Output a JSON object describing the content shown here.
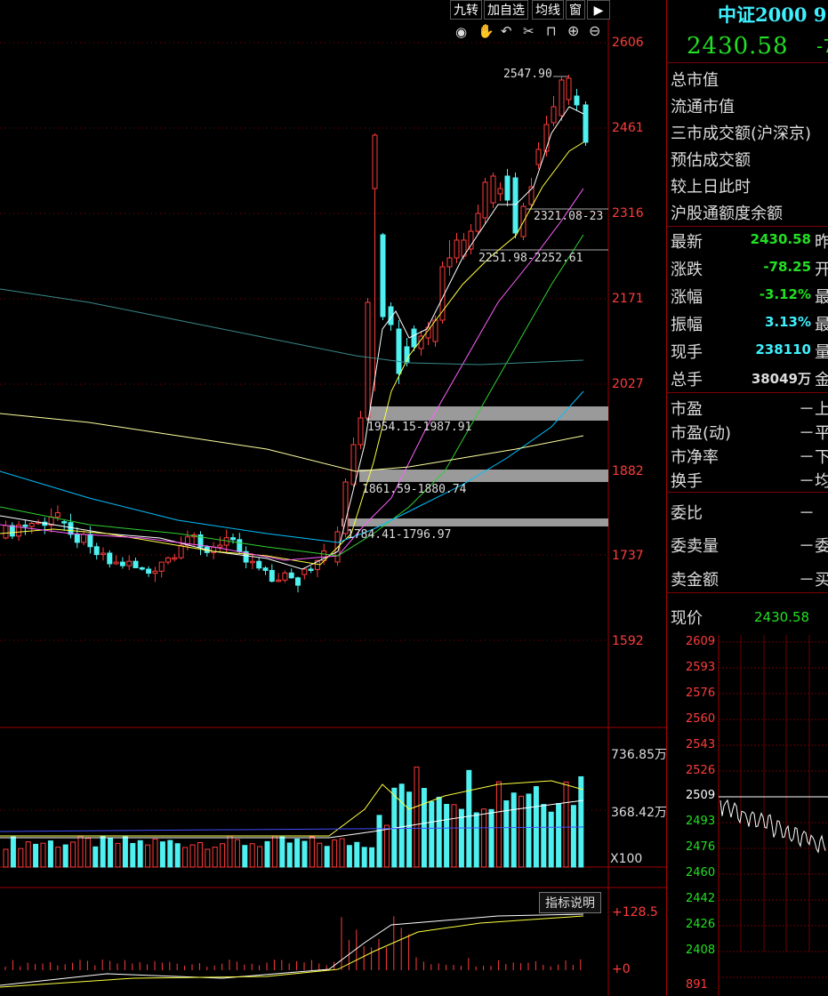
{
  "toolbar": {
    "nine_turn": "九转",
    "add_watch": "加自选",
    "ma_line": "均线",
    "window": "窗",
    "arrow": "▶"
  },
  "chart_icons": [
    "eye-icon",
    "hand-icon",
    "undo-icon",
    "scissors-icon",
    "lock-icon",
    "zoom-in-icon",
    "zoom-out-icon"
  ],
  "price_axis": [
    "2606",
    "2461",
    "2316",
    "2171",
    "2027",
    "1882",
    "1737",
    "1592"
  ],
  "volume_axis": {
    "top": "736.85万",
    "mid": "368.42万",
    "unit": "X100"
  },
  "indicator_axis": {
    "top": "+128.5",
    "zero": "+0"
  },
  "indicator_button": "指标说明",
  "annotations": {
    "high": "2547.90",
    "gap1": "2321.08-23",
    "gap2": "2251.98-2252.61",
    "gap3": "1954.15-1987.91",
    "gap4": "1861.59-1880.74",
    "gap5": "1784.41-1796.97"
  },
  "header": {
    "title": "中证2000 9",
    "price": "2430.58",
    "change_trail": "-7"
  },
  "info": [
    "总市值",
    "流通市值",
    "三市成交额(沪深京)",
    "预估成交额",
    "较上日此时",
    "沪股通额度余额"
  ],
  "quotes": [
    {
      "label": "最新",
      "value": "2430.58",
      "trail": "昨"
    },
    {
      "label": "涨跌",
      "value": "-78.25",
      "trail": "开"
    },
    {
      "label": "涨幅",
      "value": "-3.12%",
      "trail": "最"
    },
    {
      "label": "振幅",
      "value": "3.13%",
      "trail": "最"
    },
    {
      "label": "现手",
      "value": "238110",
      "trail": "量"
    },
    {
      "label": "总手",
      "value": "38049万",
      "trail": "金"
    }
  ],
  "ratios": [
    {
      "label": "市盈",
      "value": "－上"
    },
    {
      "label": "市盈(动)",
      "value": "－平"
    },
    {
      "label": "市净率",
      "value": "－下"
    },
    {
      "label": "换手",
      "value": "－均"
    }
  ],
  "orders": [
    {
      "label": "委比",
      "value": "－"
    },
    {
      "label": "委卖量",
      "value": "－委"
    },
    {
      "label": "卖金额",
      "value": "－买"
    }
  ],
  "current_price": {
    "label": "现价",
    "value": "2430.58"
  },
  "mini_axis": [
    "2609",
    "2593",
    "2576",
    "2560",
    "2543",
    "2526",
    "2509",
    "2493",
    "2476",
    "2460",
    "2442",
    "2426",
    "2408",
    "891"
  ],
  "colors": {
    "up": "#ff3c3c",
    "down": "#4ff0f0",
    "ma5": "#ffffff",
    "ma10": "#ffff40",
    "ma20": "#ff60ff",
    "ma30": "#30d030",
    "ma60": "#00c0ff"
  }
}
